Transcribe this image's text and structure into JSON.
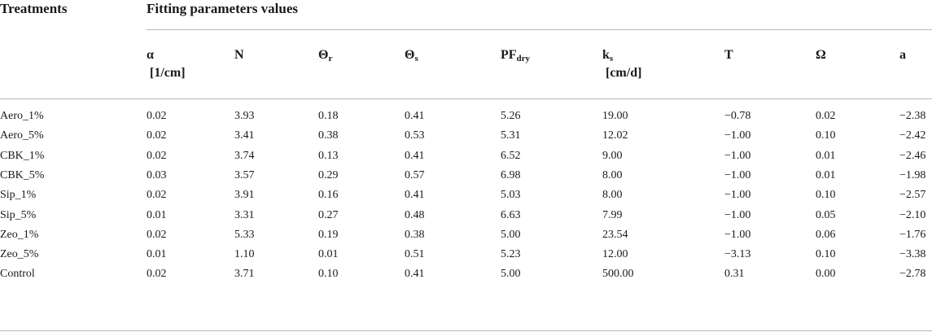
{
  "header": {
    "treatments": "Treatments",
    "group": "Fitting parameters values"
  },
  "columns": [
    {
      "main": "α",
      "sub": "",
      "unit": "[1/cm]"
    },
    {
      "main": "N",
      "sub": "",
      "unit": ""
    },
    {
      "main": "Θ",
      "sub": "r",
      "unit": ""
    },
    {
      "main": "Θ",
      "sub": "s",
      "unit": ""
    },
    {
      "main": "PF",
      "sub": "dry",
      "unit": ""
    },
    {
      "main": "k",
      "sub": "s",
      "unit": "[cm/d]"
    },
    {
      "main": "T",
      "sub": "",
      "unit": ""
    },
    {
      "main": "Ω",
      "sub": "",
      "unit": ""
    },
    {
      "main": "a",
      "sub": "",
      "unit": ""
    }
  ],
  "rows": [
    {
      "treatment": "Aero_1%",
      "values": [
        "0.02",
        "3.93",
        "0.18",
        "0.41",
        "5.26",
        "19.00",
        "−0.78",
        "0.02",
        "−2.38"
      ]
    },
    {
      "treatment": "Aero_5%",
      "values": [
        "0.02",
        "3.41",
        "0.38",
        "0.53",
        "5.31",
        "12.02",
        "−1.00",
        "0.10",
        "−2.42"
      ]
    },
    {
      "treatment": "CBK_1%",
      "values": [
        "0.02",
        "3.74",
        "0.13",
        "0.41",
        "6.52",
        "9.00",
        "−1.00",
        "0.01",
        "−2.46"
      ]
    },
    {
      "treatment": "CBK_5%",
      "values": [
        "0.03",
        "3.57",
        "0.29",
        "0.57",
        "6.98",
        "8.00",
        "−1.00",
        "0.01",
        "−1.98"
      ]
    },
    {
      "treatment": "Sip_1%",
      "values": [
        "0.02",
        "3.91",
        "0.16",
        "0.41",
        "5.03",
        "8.00",
        "−1.00",
        "0.10",
        "−2.57"
      ]
    },
    {
      "treatment": "Sip_5%",
      "values": [
        "0.01",
        "3.31",
        "0.27",
        "0.48",
        "6.63",
        "7.99",
        "−1.00",
        "0.05",
        "−2.10"
      ]
    },
    {
      "treatment": "Zeo_1%",
      "values": [
        "0.02",
        "5.33",
        "0.19",
        "0.38",
        "5.00",
        "23.54",
        "−1.00",
        "0.06",
        "−1.76"
      ]
    },
    {
      "treatment": "Zeo_5%",
      "values": [
        "0.01",
        "1.10",
        "0.01",
        "0.51",
        "5.23",
        "12.00",
        "−3.13",
        "0.10",
        "−3.38"
      ]
    },
    {
      "treatment": "Control",
      "values": [
        "0.02",
        "3.71",
        "0.10",
        "0.41",
        "5.00",
        "500.00",
        "0.31",
        "0.00",
        "−2.78"
      ]
    }
  ]
}
